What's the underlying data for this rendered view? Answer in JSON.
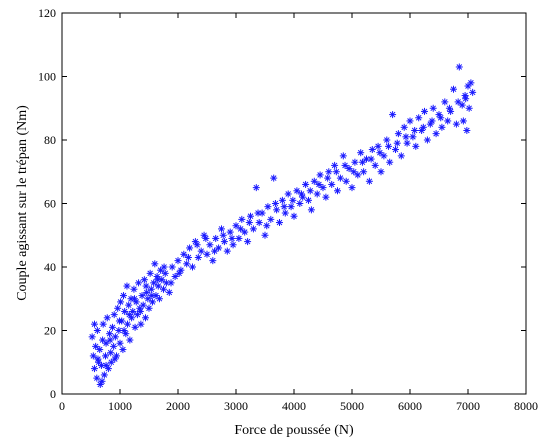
{
  "chart_data": {
    "type": "scatter",
    "title": "",
    "xlabel": "Force de poussée (N)",
    "ylabel": "Couple agissant sur le trépan (Nm)",
    "xlim": [
      0,
      8000
    ],
    "ylim": [
      0,
      120
    ],
    "xticks": [
      0,
      1000,
      2000,
      3000,
      4000,
      5000,
      6000,
      7000,
      8000
    ],
    "yticks": [
      0,
      20,
      40,
      60,
      80,
      100,
      120
    ],
    "grid": false,
    "legend": "none",
    "marker": "asterisk",
    "color": "#1a1aff",
    "series": [
      {
        "points": [
          [
            520,
            18
          ],
          [
            540,
            12
          ],
          [
            560,
            8
          ],
          [
            580,
            15
          ],
          [
            600,
            5
          ],
          [
            610,
            20
          ],
          [
            630,
            10
          ],
          [
            650,
            14
          ],
          [
            660,
            3
          ],
          [
            680,
            9
          ],
          [
            700,
            17
          ],
          [
            710,
            22
          ],
          [
            730,
            6
          ],
          [
            750,
            12
          ],
          [
            760,
            16
          ],
          [
            780,
            24
          ],
          [
            800,
            8
          ],
          [
            820,
            19
          ],
          [
            840,
            13
          ],
          [
            850,
            10
          ],
          [
            870,
            21
          ],
          [
            890,
            15
          ],
          [
            900,
            25
          ],
          [
            920,
            18
          ],
          [
            940,
            12
          ],
          [
            960,
            27
          ],
          [
            980,
            20
          ],
          [
            1000,
            16
          ],
          [
            1010,
            29
          ],
          [
            1030,
            23
          ],
          [
            1050,
            14
          ],
          [
            1060,
            31
          ],
          [
            1080,
            26
          ],
          [
            1100,
            19
          ],
          [
            1120,
            34
          ],
          [
            1130,
            22
          ],
          [
            1150,
            28
          ],
          [
            1170,
            17
          ],
          [
            1190,
            30
          ],
          [
            1200,
            24
          ],
          [
            1220,
            26
          ],
          [
            1240,
            33
          ],
          [
            1260,
            21
          ],
          [
            1280,
            29
          ],
          [
            1300,
            25
          ],
          [
            1320,
            35
          ],
          [
            1340,
            27
          ],
          [
            1360,
            22
          ],
          [
            1380,
            31
          ],
          [
            1400,
            28
          ],
          [
            1420,
            36
          ],
          [
            1440,
            24
          ],
          [
            1460,
            32
          ],
          [
            1480,
            30
          ],
          [
            1500,
            27
          ],
          [
            1520,
            38
          ],
          [
            1540,
            33
          ],
          [
            1560,
            29
          ],
          [
            1580,
            35
          ],
          [
            1600,
            41
          ],
          [
            1620,
            31
          ],
          [
            1640,
            37
          ],
          [
            1660,
            34
          ],
          [
            1680,
            30
          ],
          [
            1700,
            39
          ],
          [
            1720,
            36
          ],
          [
            1750,
            33
          ],
          [
            1780,
            38
          ],
          [
            1800,
            35
          ],
          [
            1850,
            32
          ],
          [
            1900,
            40
          ],
          [
            1950,
            37
          ],
          [
            2000,
            42
          ],
          [
            2050,
            39
          ],
          [
            2100,
            44
          ],
          [
            2150,
            41
          ],
          [
            2200,
            46
          ],
          [
            2250,
            40
          ],
          [
            2300,
            48
          ],
          [
            2350,
            43
          ],
          [
            2400,
            45
          ],
          [
            2450,
            50
          ],
          [
            2500,
            44
          ],
          [
            2550,
            47
          ],
          [
            2600,
            42
          ],
          [
            2650,
            49
          ],
          [
            2700,
            46
          ],
          [
            2750,
            52
          ],
          [
            2800,
            48
          ],
          [
            2850,
            45
          ],
          [
            2900,
            51
          ],
          [
            2950,
            47
          ],
          [
            3000,
            53
          ],
          [
            3050,
            49
          ],
          [
            3100,
            55
          ],
          [
            3150,
            51
          ],
          [
            3200,
            48
          ],
          [
            3250,
            56
          ],
          [
            3300,
            52
          ],
          [
            3350,
            65
          ],
          [
            3400,
            54
          ],
          [
            3450,
            57
          ],
          [
            3500,
            50
          ],
          [
            3550,
            59
          ],
          [
            3600,
            55
          ],
          [
            3650,
            68
          ],
          [
            3700,
            58
          ],
          [
            3750,
            54
          ],
          [
            3800,
            61
          ],
          [
            3850,
            57
          ],
          [
            3900,
            63
          ],
          [
            3950,
            59
          ],
          [
            4000,
            56
          ],
          [
            4050,
            64
          ],
          [
            4100,
            60
          ],
          [
            4150,
            62
          ],
          [
            4200,
            66
          ],
          [
            4250,
            61
          ],
          [
            4300,
            58
          ],
          [
            4350,
            67
          ],
          [
            4400,
            63
          ],
          [
            4450,
            69
          ],
          [
            4500,
            65
          ],
          [
            4550,
            62
          ],
          [
            4600,
            70
          ],
          [
            4650,
            66
          ],
          [
            4700,
            72
          ],
          [
            4750,
            64
          ],
          [
            4800,
            68
          ],
          [
            4850,
            75
          ],
          [
            4900,
            67
          ],
          [
            4950,
            71
          ],
          [
            5000,
            65
          ],
          [
            5050,
            73
          ],
          [
            5100,
            69
          ],
          [
            5150,
            76
          ],
          [
            5200,
            70
          ],
          [
            5250,
            74
          ],
          [
            5300,
            67
          ],
          [
            5350,
            77
          ],
          [
            5400,
            72
          ],
          [
            5450,
            78
          ],
          [
            5500,
            70
          ],
          [
            5550,
            75
          ],
          [
            5600,
            80
          ],
          [
            5650,
            73
          ],
          [
            5700,
            88
          ],
          [
            5750,
            77
          ],
          [
            5800,
            82
          ],
          [
            5850,
            75
          ],
          [
            5900,
            84
          ],
          [
            5950,
            79
          ],
          [
            6000,
            86
          ],
          [
            6050,
            81
          ],
          [
            6100,
            78
          ],
          [
            6150,
            87
          ],
          [
            6200,
            83
          ],
          [
            6250,
            89
          ],
          [
            6300,
            80
          ],
          [
            6350,
            85
          ],
          [
            6400,
            90
          ],
          [
            6450,
            82
          ],
          [
            6500,
            88
          ],
          [
            6550,
            84
          ],
          [
            6600,
            92
          ],
          [
            6650,
            86
          ],
          [
            6700,
            89
          ],
          [
            6750,
            96
          ],
          [
            6800,
            85
          ],
          [
            6850,
            103
          ],
          [
            6900,
            91
          ],
          [
            6920,
            86
          ],
          [
            6950,
            94
          ],
          [
            6980,
            83
          ],
          [
            7000,
            97
          ],
          [
            7020,
            90
          ],
          [
            7050,
            98
          ],
          [
            7080,
            95
          ],
          [
            560,
            22
          ],
          [
            620,
            11
          ],
          [
            690,
            4
          ],
          [
            760,
            9
          ],
          [
            830,
            17
          ],
          [
            910,
            11
          ],
          [
            990,
            23
          ],
          [
            1070,
            20
          ],
          [
            1160,
            25
          ],
          [
            1250,
            30
          ],
          [
            1350,
            26
          ],
          [
            1450,
            34
          ],
          [
            1550,
            31
          ],
          [
            1650,
            36
          ],
          [
            1760,
            40
          ],
          [
            1880,
            35
          ],
          [
            2020,
            38
          ],
          [
            2180,
            43
          ],
          [
            2330,
            47
          ],
          [
            2480,
            49
          ],
          [
            2630,
            45
          ],
          [
            2780,
            50
          ],
          [
            2930,
            49
          ],
          [
            3080,
            52
          ],
          [
            3230,
            54
          ],
          [
            3380,
            57
          ],
          [
            3530,
            53
          ],
          [
            3680,
            60
          ],
          [
            3830,
            59
          ],
          [
            3980,
            61
          ],
          [
            4130,
            63
          ],
          [
            4280,
            64
          ],
          [
            4430,
            66
          ],
          [
            4580,
            68
          ],
          [
            4730,
            70
          ],
          [
            4880,
            72
          ],
          [
            5030,
            70
          ],
          [
            5180,
            73
          ],
          [
            5330,
            74
          ],
          [
            5480,
            76
          ],
          [
            5630,
            78
          ],
          [
            5780,
            79
          ],
          [
            5930,
            81
          ],
          [
            6080,
            83
          ],
          [
            6230,
            84
          ],
          [
            6380,
            86
          ],
          [
            6530,
            87
          ],
          [
            6680,
            90
          ],
          [
            6830,
            92
          ],
          [
            6960,
            93
          ]
        ]
      }
    ]
  }
}
